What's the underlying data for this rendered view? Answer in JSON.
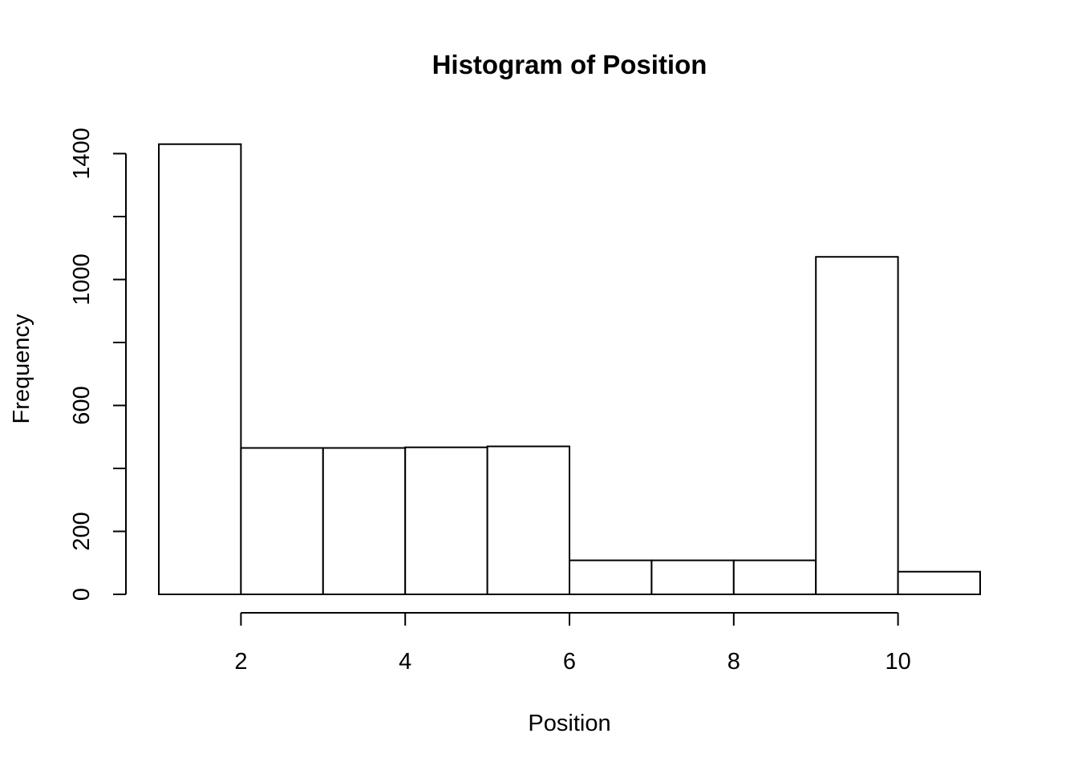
{
  "chart_data": {
    "type": "bar",
    "title": "Histogram of Position",
    "xlabel": "Position",
    "ylabel": "Frequency",
    "bins": [
      {
        "start": 1,
        "end": 2,
        "count": 1430
      },
      {
        "start": 2,
        "end": 3,
        "count": 465
      },
      {
        "start": 3,
        "end": 4,
        "count": 465
      },
      {
        "start": 4,
        "end": 5,
        "count": 467
      },
      {
        "start": 5,
        "end": 6,
        "count": 470
      },
      {
        "start": 6,
        "end": 7,
        "count": 108
      },
      {
        "start": 7,
        "end": 8,
        "count": 108
      },
      {
        "start": 8,
        "end": 9,
        "count": 108
      },
      {
        "start": 9,
        "end": 10,
        "count": 1072
      },
      {
        "start": 10,
        "end": 11,
        "count": 72
      }
    ],
    "xlim": [
      1,
      11
    ],
    "ylim": [
      0,
      1500
    ],
    "x_ticks": [
      2,
      4,
      6,
      8,
      10
    ],
    "x_tick_labels": [
      "2",
      "4",
      "6",
      "8",
      "10"
    ],
    "y_ticks": [
      0,
      200,
      400,
      600,
      800,
      1000,
      1200,
      1400
    ],
    "y_tick_labels": [
      "0",
      "200",
      "",
      "600",
      "",
      "1000",
      "",
      "1400"
    ],
    "grid": false,
    "bar_fill": "#ffffff",
    "bar_stroke": "#000000"
  }
}
